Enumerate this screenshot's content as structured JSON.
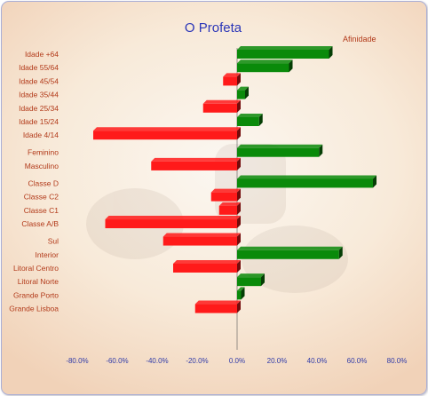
{
  "chart_data": {
    "type": "bar",
    "orientation": "horizontal",
    "title": "O Profeta",
    "legend": "Afinidade",
    "legend_position": "top-right",
    "categories": [
      "Idade +64",
      "Idade 55/64",
      "Idade 45/54",
      "Idade 35/44",
      "Idade 25/34",
      "Idade 15/24",
      "Idade 4/14",
      "Feminino",
      "Masculino",
      "Classe D",
      "Classe C2",
      "Classe C1",
      "Classe A/B",
      "Sul",
      "Interior",
      "Litoral Centro",
      "Litoral Norte",
      "Grande Porto",
      "Grande Lisboa"
    ],
    "groups": [
      7,
      2,
      4,
      6
    ],
    "values": [
      46,
      26,
      -7,
      4,
      -17,
      11,
      -72,
      41,
      -43,
      68,
      -13,
      -9,
      -66,
      -37,
      51,
      -32,
      12,
      2,
      -21
    ],
    "xlim": [
      -80,
      80
    ],
    "xticks": [
      "-80.0%",
      "-60.0%",
      "-40.0%",
      "-20.0%",
      "0.0%",
      "20.0%",
      "40.0%",
      "60.0%",
      "80.0%"
    ],
    "positive_color": "#0a8a0a",
    "negative_color": "#ff1a1a",
    "grid": false
  }
}
